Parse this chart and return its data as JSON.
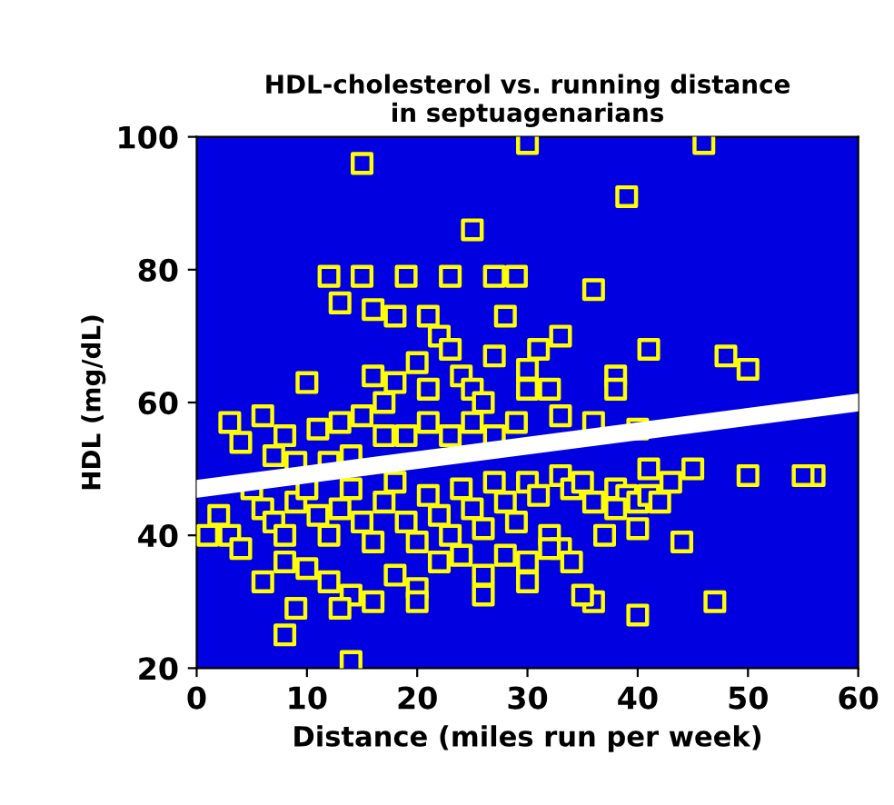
{
  "chart_data": {
    "type": "scatter",
    "title": "HDL-cholesterol vs. running distance\nin septuagenarians",
    "xlabel": "Distance (miles run per week)",
    "ylabel": "HDL (mg/dL)",
    "xlim": [
      0,
      60
    ],
    "ylim": [
      20,
      100
    ],
    "xticks": [
      0,
      10,
      20,
      30,
      40,
      50,
      60
    ],
    "yticks": [
      20,
      40,
      60,
      80,
      100
    ],
    "grid": false,
    "series": [
      {
        "marker": "square",
        "color": "#ffff00",
        "x": [
          15,
          30,
          46,
          39,
          25,
          12,
          15,
          19,
          23,
          27,
          29,
          36,
          13,
          16,
          18,
          21,
          22,
          28,
          33,
          23,
          27,
          30,
          31,
          41,
          48,
          50,
          38,
          38,
          20,
          24,
          18,
          21,
          16,
          25,
          17,
          26,
          30,
          32,
          10,
          6,
          8,
          11,
          13,
          15,
          3,
          4,
          7,
          9,
          12,
          14,
          17,
          19,
          21,
          23,
          25,
          27,
          29,
          33,
          36,
          40,
          1,
          3,
          2,
          5,
          6,
          7,
          8,
          9,
          10,
          11,
          12,
          13,
          14,
          15,
          16,
          17,
          18,
          19,
          20,
          21,
          22,
          23,
          24,
          25,
          26,
          27,
          28,
          29,
          30,
          31,
          33,
          34,
          35,
          36,
          38,
          39,
          40,
          43,
          50,
          56,
          55,
          32,
          33,
          37,
          40,
          44,
          10,
          12,
          14,
          16,
          18,
          20,
          22,
          24,
          26,
          28,
          30,
          32,
          34,
          8,
          6,
          4,
          9,
          13,
          20,
          26,
          30,
          36,
          40,
          47,
          8,
          14,
          35,
          38,
          41,
          42,
          41,
          45
        ],
        "values": [
          96,
          99,
          99,
          91,
          86,
          79,
          79,
          79,
          79,
          79,
          79,
          77,
          75,
          74,
          73,
          73,
          70,
          73,
          70,
          68,
          67,
          65,
          68,
          68,
          67,
          65,
          64,
          62,
          66,
          64,
          63,
          62,
          64,
          62,
          60,
          60,
          62,
          62,
          63,
          58,
          55,
          56,
          57,
          58,
          57,
          54,
          52,
          51,
          51,
          52,
          55,
          55,
          57,
          55,
          57,
          55,
          57,
          58,
          57,
          56,
          40,
          40,
          43,
          47,
          44,
          42,
          40,
          45,
          47,
          43,
          40,
          44,
          47,
          42,
          39,
          45,
          48,
          42,
          39,
          46,
          43,
          40,
          47,
          44,
          41,
          48,
          45,
          42,
          48,
          46,
          49,
          47,
          48,
          45,
          47,
          46,
          45,
          48,
          49,
          49,
          49,
          40,
          38,
          40,
          41,
          39,
          35,
          33,
          31,
          30,
          34,
          32,
          36,
          37,
          34,
          37,
          36,
          38,
          36,
          36,
          33,
          38,
          29,
          29,
          30,
          31,
          33,
          30,
          28,
          30,
          25,
          21,
          31,
          44,
          46,
          45,
          50,
          50
        ]
      },
      {
        "type": "line",
        "marker": "none",
        "color": "#ffffff",
        "x": [
          0,
          60
        ],
        "values": [
          47,
          60
        ]
      }
    ]
  }
}
